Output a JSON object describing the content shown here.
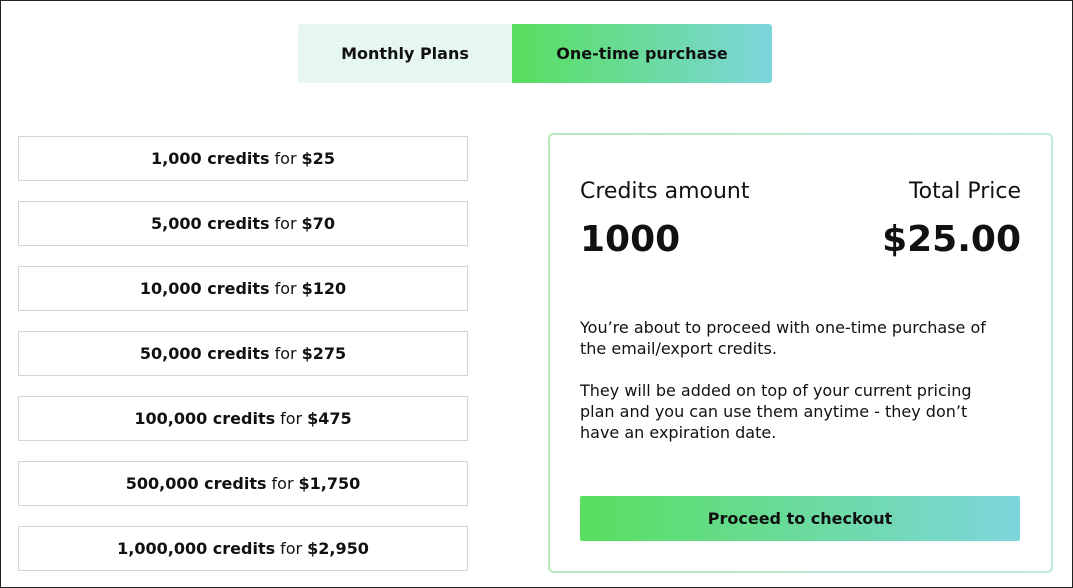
{
  "tabs": {
    "monthly": "Monthly Plans",
    "one_time": "One-time purchase",
    "active": "one_time"
  },
  "options": [
    {
      "credits": "1,000 credits",
      "for": "for",
      "price": "$25"
    },
    {
      "credits": "5,000 credits",
      "for": "for",
      "price": "$70"
    },
    {
      "credits": "10,000 credits",
      "for": "for",
      "price": "$120"
    },
    {
      "credits": "50,000 credits",
      "for": "for",
      "price": "$275"
    },
    {
      "credits": "100,000 credits",
      "for": "for",
      "price": "$475"
    },
    {
      "credits": "500,000 credits",
      "for": "for",
      "price": "$1,750"
    },
    {
      "credits": "1,000,000 credits",
      "for": "for",
      "price": "$2,950"
    }
  ],
  "summary": {
    "credits_label": "Credits amount",
    "credits_value": "1000",
    "price_label": "Total Price",
    "price_value": "$25.00",
    "para1": "You’re about to proceed with one-time purchase of the email/export credits.",
    "para2": "They will be added on top of your current pricing plan and you can use them anytime - they don’t have an expiration date.",
    "checkout": "Proceed to checkout"
  }
}
